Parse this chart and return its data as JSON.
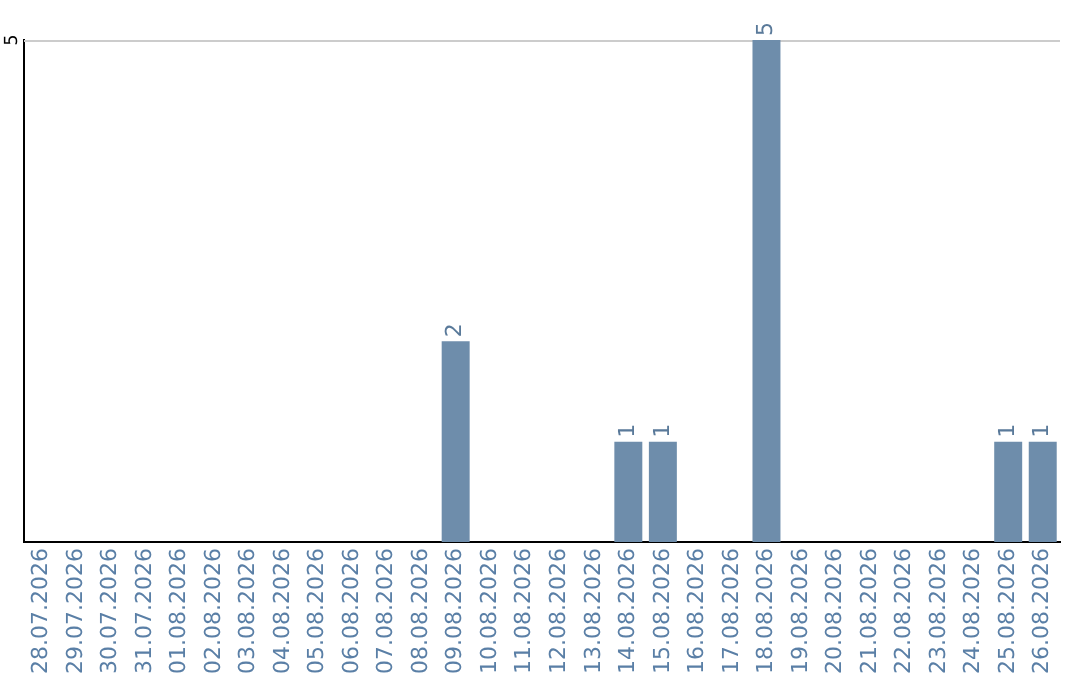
{
  "chart_data": {
    "type": "bar",
    "categories": [
      "28.07.2026",
      "29.07.2026",
      "30.07.2026",
      "31.07.2026",
      "01.08.2026",
      "02.08.2026",
      "03.08.2026",
      "04.08.2026",
      "05.08.2026",
      "06.08.2026",
      "07.08.2026",
      "08.08.2026",
      "09.08.2026",
      "10.08.2026",
      "11.08.2026",
      "12.08.2026",
      "13.08.2026",
      "14.08.2026",
      "15.08.2026",
      "16.08.2026",
      "17.08.2026",
      "18.08.2026",
      "19.08.2026",
      "20.08.2026",
      "21.08.2026",
      "22.08.2026",
      "23.08.2026",
      "24.08.2026",
      "25.08.2026",
      "26.08.2026"
    ],
    "values": [
      null,
      null,
      null,
      null,
      null,
      null,
      null,
      null,
      null,
      null,
      null,
      null,
      2,
      null,
      null,
      null,
      null,
      1,
      1,
      null,
      null,
      5,
      null,
      null,
      null,
      null,
      null,
      null,
      1,
      1
    ],
    "value_labels": [
      null,
      null,
      null,
      null,
      null,
      null,
      null,
      null,
      null,
      null,
      null,
      null,
      "2",
      null,
      null,
      null,
      null,
      "1",
      "1",
      null,
      null,
      "5",
      null,
      null,
      null,
      null,
      null,
      null,
      "1",
      "1"
    ],
    "color": "#6e8dab",
    "annotations": [
      "5"
    ],
    "legend": false
  }
}
